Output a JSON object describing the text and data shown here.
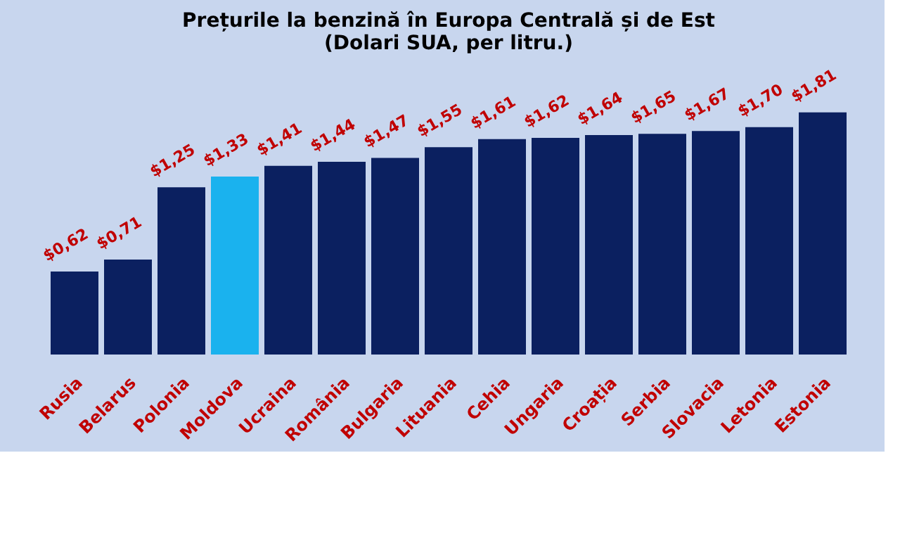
{
  "chart_data": {
    "type": "bar",
    "title": [
      "Prețurile la benzină în Europa Centrală și de Est",
      "(Dolari SUA, per litru.)"
    ],
    "categories": [
      "Rusia",
      "Belarus",
      "Polonia",
      "Moldova",
      "Ucraina",
      "România",
      "Bulgaria",
      "Lituania",
      "Cehia",
      "Ungaria",
      "Croația",
      "Serbia",
      "Slovacia",
      "Letonia",
      "Estonia"
    ],
    "values": [
      0.62,
      0.71,
      1.25,
      1.33,
      1.41,
      1.44,
      1.47,
      1.55,
      1.61,
      1.62,
      1.64,
      1.65,
      1.67,
      1.7,
      1.81
    ],
    "value_labels": [
      "$0,62",
      "$0,71",
      "$1,25",
      "$1,33",
      "$1,41",
      "$1,44",
      "$1,47",
      "$1,55",
      "$1,61",
      "$1,62",
      "$1,64",
      "$1,65",
      "$1,67",
      "$1,70",
      "$1,81"
    ],
    "colors": [
      "#0b2060",
      "#0b2060",
      "#0b2060",
      "#1ab2ee",
      "#0b2060",
      "#0b2060",
      "#0b2060",
      "#0b2060",
      "#0b2060",
      "#0b2060",
      "#0b2060",
      "#0b2060",
      "#0b2060",
      "#0b2060",
      "#0b2060"
    ],
    "relative": false
  }
}
